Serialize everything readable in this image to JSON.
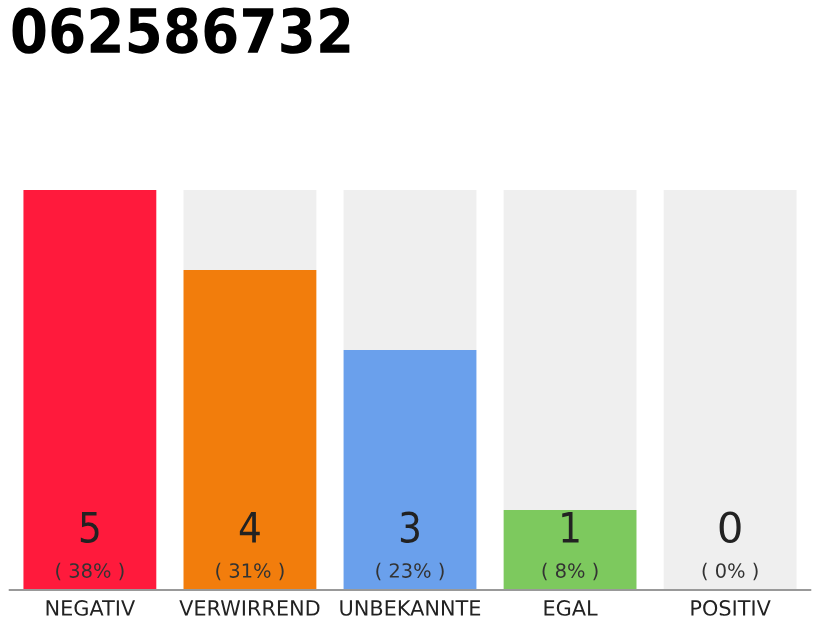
{
  "chart_data": {
    "type": "bar",
    "title": "062586732",
    "categories": [
      "NEGATIV",
      "VERWIRREND",
      "UNBEKANNTE",
      "EGAL",
      "POSITIV"
    ],
    "stacked": true,
    "ylim": [
      0,
      5
    ],
    "tick_labels": "x",
    "grid": false,
    "legend": false,
    "annotations": [
      {
        "text": "0\n( 0% )",
        "x": "POSITIV",
        "y": 0
      }
    ],
    "series": [
      {
        "colors": [
          "#ff1a3c",
          "#f27d0c",
          "#6aa0ec",
          "#7dc95e",
          "#efefef"
        ],
        "values": [
          5,
          4,
          3,
          1,
          0
        ],
        "value_labels": [
          "5\n( 38% )",
          "4\n( 31% )",
          "3\n( 23% )",
          "1\n( 8% )",
          null
        ]
      },
      {
        "color": "#efefef",
        "values": [
          0,
          1,
          2,
          4,
          5
        ]
      }
    ]
  }
}
